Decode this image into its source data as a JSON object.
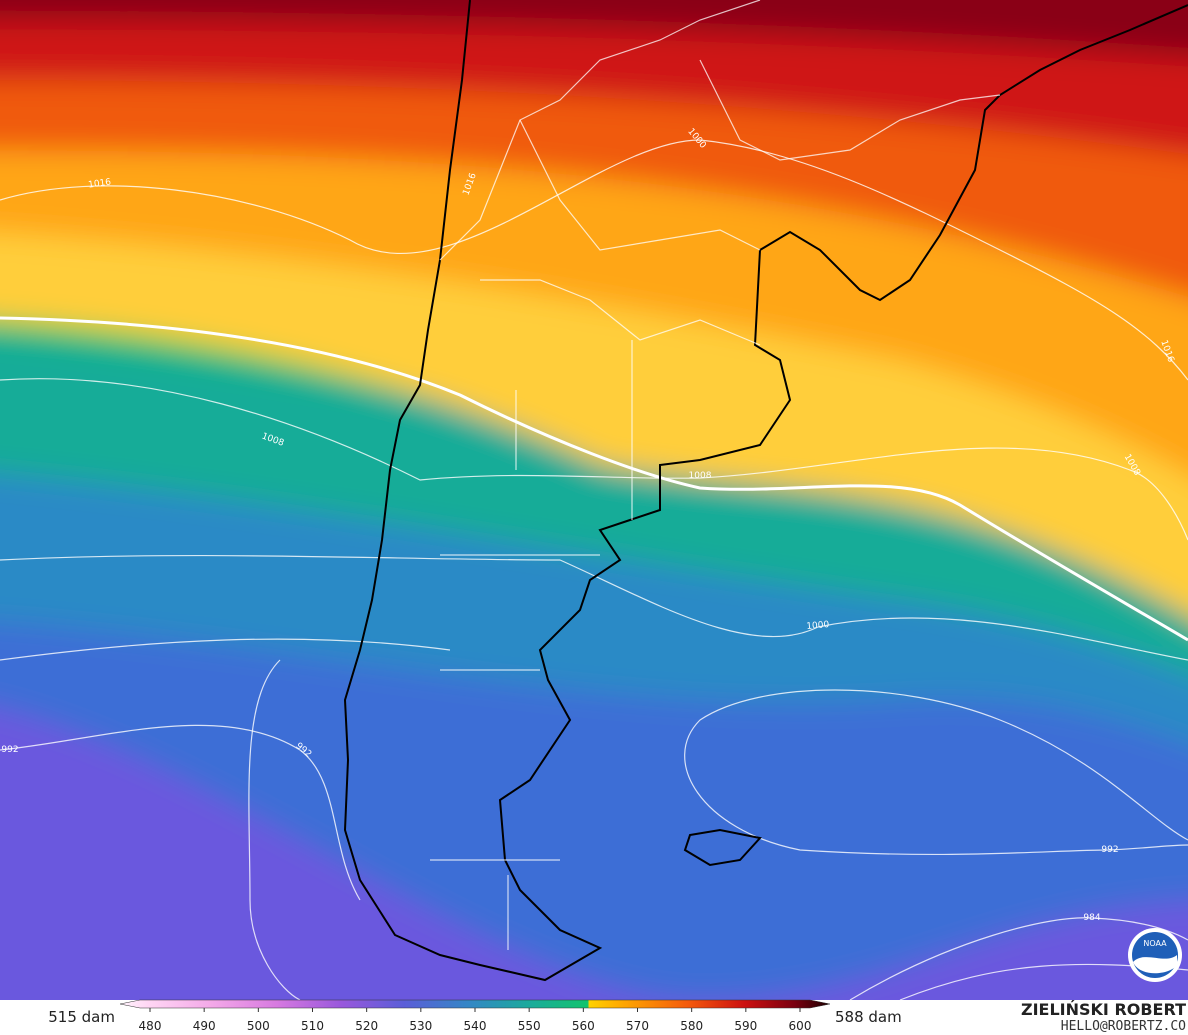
{
  "colorbar": {
    "left_label": "515 dam",
    "right_label": "588 dam",
    "ticks": [
      480,
      490,
      500,
      510,
      520,
      530,
      540,
      550,
      560,
      570,
      580,
      590,
      600
    ]
  },
  "credit": {
    "name": "ZIELIŃSKI ROBERT",
    "contact": "HELLO@ROBERTZ.CO"
  },
  "logo": "NOAA",
  "isobar_labels": [
    1016,
    1016,
    1000,
    1008,
    1008,
    1008,
    1016,
    1000,
    992,
    992,
    992,
    984
  ]
}
